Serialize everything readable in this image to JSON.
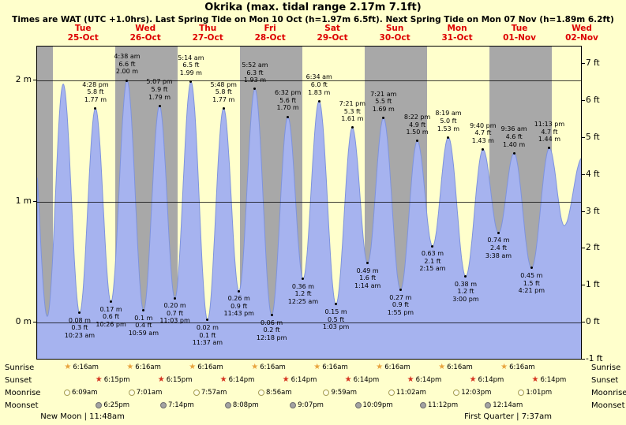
{
  "title": "Okrika (max. tidal range 2.17m 7.1ft)",
  "subtitle": "Times are WAT (UTC +1.0hrs). Last Spring Tide on Mon 10 Oct (h=1.97m 6.5ft). Next Spring Tide on Mon 07 Nov (h=1.89m 6.2ft)",
  "colors": {
    "page_bg": "#ffffcc",
    "band_yellow": "#ffffcc",
    "band_gray": "#a8a8a8",
    "tide_fill": "#a6b3ef",
    "tide_stroke": "#7e93dd",
    "day_label_red": "#dd0000",
    "sunrise_star": "#e8a33d",
    "sunset_star": "#d5341f",
    "moonrise_fill": "#ffffe4",
    "moonrise_border": "#a59d52",
    "moonset_fill": "#a3a3a3",
    "moonset_border": "#6e6e6e"
  },
  "days": [
    {
      "name": "Tue",
      "date": "25-Oct"
    },
    {
      "name": "Wed",
      "date": "26-Oct"
    },
    {
      "name": "Thu",
      "date": "27-Oct"
    },
    {
      "name": "Fri",
      "date": "28-Oct"
    },
    {
      "name": "Sat",
      "date": "29-Oct"
    },
    {
      "name": "Sun",
      "date": "30-Oct"
    },
    {
      "name": "Mon",
      "date": "31-Oct"
    },
    {
      "name": "Tue",
      "date": "01-Nov"
    },
    {
      "name": "Wed",
      "date": "02-Nov"
    }
  ],
  "y_axis_left": [
    {
      "label": "2 m",
      "m": 2
    },
    {
      "label": "1 m",
      "m": 1
    },
    {
      "label": "0 m",
      "m": 0
    }
  ],
  "y_axis_right": [
    {
      "label": "7 ft",
      "ft": 7
    },
    {
      "label": "6 ft",
      "ft": 6
    },
    {
      "label": "5 ft",
      "ft": 5
    },
    {
      "label": "4 ft",
      "ft": 4
    },
    {
      "label": "3 ft",
      "ft": 3
    },
    {
      "label": "2 ft",
      "ft": 2
    },
    {
      "label": "1 ft",
      "ft": 1
    },
    {
      "label": "0 ft",
      "ft": 0
    },
    {
      "label": "-1 ft",
      "ft": -1
    }
  ],
  "chart_data": {
    "type": "area",
    "title": "Okrika (max. tidal range 2.17m 7.1ft)",
    "x_axis": {
      "unit": "hours from Tue 25-Oct 00:00",
      "start": -6,
      "end": 204,
      "day_band_width_hours": 24
    },
    "ylim_m": [
      -0.31,
      2.28
    ],
    "grid_m_lines": [
      0,
      1,
      2
    ],
    "legend": "none",
    "tide_events": [
      {
        "t": -8.37,
        "m": "1.80",
        "estimated": true
      },
      {
        "t": -2.08,
        "m": "0.05",
        "estimated": true
      },
      {
        "t": 4.05,
        "m": "1.97",
        "estimated": true
      },
      {
        "day": 0,
        "time": "10:23 am",
        "type": "low",
        "m": "0.08",
        "ft": "0.3"
      },
      {
        "day": 0,
        "time": "4:28 pm",
        "type": "high",
        "m": "1.77",
        "ft": "5.8"
      },
      {
        "day": 0,
        "time": "10:26 pm",
        "type": "low",
        "m": "0.17",
        "ft": "0.6"
      },
      {
        "day": 1,
        "time": "4:38 am",
        "type": "high",
        "m": "2.00",
        "ft": "6.6"
      },
      {
        "day": 1,
        "time": "10:59 am",
        "type": "low",
        "m": "0.1",
        "ft": "0.4"
      },
      {
        "day": 1,
        "time": "5:07 pm",
        "type": "high",
        "m": "1.79",
        "ft": "5.9"
      },
      {
        "day": 1,
        "time": "11:03 pm",
        "type": "low",
        "m": "0.20",
        "ft": "0.7"
      },
      {
        "day": 2,
        "time": "5:14 am",
        "type": "high",
        "m": "1.99",
        "ft": "6.5"
      },
      {
        "day": 2,
        "time": "11:37 am",
        "type": "low",
        "m": "0.02",
        "ft": "0.1"
      },
      {
        "day": 2,
        "time": "5:48 pm",
        "type": "high",
        "m": "1.77",
        "ft": "5.8"
      },
      {
        "day": 2,
        "time": "11:43 pm",
        "type": "low",
        "m": "0.26",
        "ft": "0.9"
      },
      {
        "day": 3,
        "time": "5:52 am",
        "type": "high",
        "m": "1.93",
        "ft": "6.3"
      },
      {
        "day": 3,
        "time": "12:18 pm",
        "type": "low",
        "m": "0.06",
        "ft": "0.2"
      },
      {
        "day": 3,
        "time": "6:32 pm",
        "type": "high",
        "m": "1.70",
        "ft": "5.6"
      },
      {
        "day": 4,
        "time": "12:25 am",
        "type": "low",
        "m": "0.36",
        "ft": "1.2"
      },
      {
        "day": 4,
        "time": "6:34 am",
        "type": "high",
        "m": "1.83",
        "ft": "6.0"
      },
      {
        "day": 4,
        "time": "1:03 pm",
        "type": "low",
        "m": "0.15",
        "ft": "0.5"
      },
      {
        "day": 4,
        "time": "7:21 pm",
        "type": "high",
        "m": "1.61",
        "ft": "5.3"
      },
      {
        "day": 5,
        "time": "1:14 am",
        "type": "low",
        "m": "0.49",
        "ft": "1.6"
      },
      {
        "day": 5,
        "time": "7:21 am",
        "type": "high",
        "m": "1.69",
        "ft": "5.5"
      },
      {
        "day": 5,
        "time": "1:55 pm",
        "type": "low",
        "m": "0.27",
        "ft": "0.9"
      },
      {
        "day": 5,
        "time": "8:22 pm",
        "type": "high",
        "m": "1.50",
        "ft": "4.9"
      },
      {
        "day": 6,
        "time": "2:15 am",
        "type": "low",
        "m": "0.63",
        "ft": "2.1"
      },
      {
        "day": 6,
        "time": "8:19 am",
        "type": "high",
        "m": "1.53",
        "ft": "5.0"
      },
      {
        "day": 6,
        "time": "3:00 pm",
        "type": "low",
        "m": "0.38",
        "ft": "1.2"
      },
      {
        "day": 6,
        "time": "9:40 pm",
        "type": "high",
        "m": "1.43",
        "ft": "4.7"
      },
      {
        "day": 7,
        "time": "3:38 am",
        "type": "low",
        "m": "0.74",
        "ft": "2.4"
      },
      {
        "day": 7,
        "time": "9:36 am",
        "type": "high",
        "m": "1.40",
        "ft": "4.6"
      },
      {
        "day": 7,
        "time": "4:21 pm",
        "type": "low",
        "m": "0.45",
        "ft": "1.5"
      },
      {
        "day": 7,
        "time": "11:13 pm",
        "type": "high",
        "m": "1.44",
        "ft": "4.7"
      },
      {
        "t": 196.92,
        "m": "0.80",
        "estimated": true
      },
      {
        "t": 203.83,
        "m": "1.36",
        "estimated": true
      }
    ]
  },
  "astro": {
    "rows": [
      {
        "label": "Sunrise",
        "icon": "sunrise-star",
        "events": [
          {
            "day": 0,
            "time": "6:16am"
          },
          {
            "day": 1,
            "time": "6:16am"
          },
          {
            "day": 2,
            "time": "6:16am"
          },
          {
            "day": 3,
            "time": "6:16am"
          },
          {
            "day": 4,
            "time": "6:16am"
          },
          {
            "day": 5,
            "time": "6:16am"
          },
          {
            "day": 6,
            "time": "6:16am"
          },
          {
            "day": 7,
            "time": "6:16am"
          }
        ]
      },
      {
        "label": "Sunset",
        "icon": "sunset-star",
        "events": [
          {
            "day": 0,
            "time": "6:15pm"
          },
          {
            "day": 1,
            "time": "6:15pm"
          },
          {
            "day": 2,
            "time": "6:14pm"
          },
          {
            "day": 3,
            "time": "6:14pm"
          },
          {
            "day": 4,
            "time": "6:14pm"
          },
          {
            "day": 5,
            "time": "6:14pm"
          },
          {
            "day": 6,
            "time": "6:14pm"
          },
          {
            "day": 7,
            "time": "6:14pm"
          }
        ]
      },
      {
        "label": "Moonrise",
        "icon": "moonrise",
        "events": [
          {
            "day": 0,
            "time": "6:09am"
          },
          {
            "day": 1,
            "time": "7:01am"
          },
          {
            "day": 2,
            "time": "7:57am"
          },
          {
            "day": 3,
            "time": "8:56am"
          },
          {
            "day": 4,
            "time": "9:59am"
          },
          {
            "day": 5,
            "time": "11:02am"
          },
          {
            "day": 6,
            "time": "12:03pm"
          },
          {
            "day": 7,
            "time": "1:01pm"
          }
        ]
      },
      {
        "label": "Moonset",
        "icon": "moonset",
        "events": [
          {
            "day": 0,
            "time": "6:25pm"
          },
          {
            "day": 1,
            "time": "7:14pm"
          },
          {
            "day": 2,
            "time": "8:08pm"
          },
          {
            "day": 3,
            "time": "9:07pm"
          },
          {
            "day": 4,
            "time": "10:09pm"
          },
          {
            "day": 5,
            "time": "11:12pm"
          },
          {
            "day": 7,
            "time": "12:14am"
          }
        ]
      }
    ],
    "phases": [
      {
        "name": "New Moon",
        "time": "11:48am",
        "day": 0
      },
      {
        "name": "First Quarter",
        "time": "7:37am",
        "day": 7
      }
    ]
  }
}
